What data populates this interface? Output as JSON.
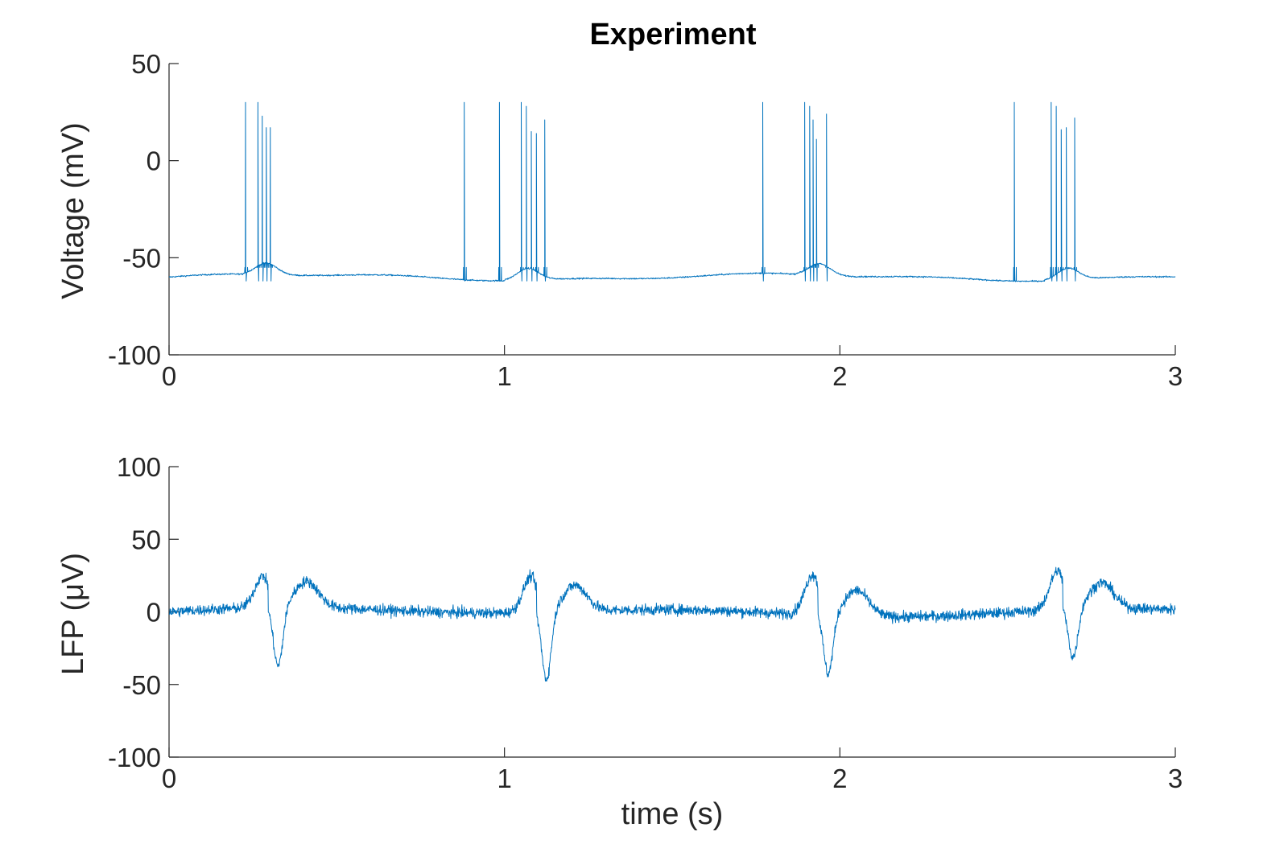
{
  "chart_data": [
    {
      "type": "line",
      "title": "Experiment",
      "xlabel": "",
      "ylabel": "Voltage (mV)",
      "xlim": [
        0,
        3
      ],
      "ylim": [
        -100,
        50
      ],
      "xticks": [
        "0",
        "1",
        "2",
        "3"
      ],
      "yticks": [
        "-100",
        "-50",
        "0",
        "50"
      ],
      "color": "#0072BD",
      "series": [
        {
          "baseline_mV": -60,
          "spikes": [
            {
              "t": 0.228,
              "peak": 30
            },
            {
              "t": 0.265,
              "peak": 30
            },
            {
              "t": 0.278,
              "peak": 23
            },
            {
              "t": 0.29,
              "peak": 17
            },
            {
              "t": 0.302,
              "peak": 17
            },
            {
              "t": 0.88,
              "peak": 30
            },
            {
              "t": 0.985,
              "peak": 30
            },
            {
              "t": 1.05,
              "peak": 30
            },
            {
              "t": 1.065,
              "peak": 28
            },
            {
              "t": 1.08,
              "peak": 15
            },
            {
              "t": 1.095,
              "peak": 14
            },
            {
              "t": 1.12,
              "peak": 21
            },
            {
              "t": 1.77,
              "peak": 30
            },
            {
              "t": 1.895,
              "peak": 30
            },
            {
              "t": 1.91,
              "peak": 28
            },
            {
              "t": 1.92,
              "peak": 21
            },
            {
              "t": 1.93,
              "peak": 11
            },
            {
              "t": 1.96,
              "peak": 24
            },
            {
              "t": 2.52,
              "peak": 30
            },
            {
              "t": 2.63,
              "peak": 30
            },
            {
              "t": 2.645,
              "peak": 28
            },
            {
              "t": 2.66,
              "peak": 16
            },
            {
              "t": 2.675,
              "peak": 17
            },
            {
              "t": 2.7,
              "peak": 22
            }
          ]
        }
      ]
    },
    {
      "type": "line",
      "title": "",
      "xlabel": "time (s)",
      "ylabel": "LFP (μV)",
      "xlim": [
        0,
        3
      ],
      "ylim": [
        -100,
        100
      ],
      "xticks": [
        "0",
        "1",
        "2",
        "3"
      ],
      "yticks": [
        "-100",
        "-50",
        "0",
        "50",
        "100"
      ],
      "color": "#0072BD",
      "series": [
        {
          "events": [
            {
              "t": 0.28,
              "pos_peak": 22,
              "neg_trough": -42,
              "rebound": 18
            },
            {
              "t": 1.08,
              "pos_peak": 25,
              "neg_trough": -48,
              "rebound": 18
            },
            {
              "t": 1.92,
              "pos_peak": 28,
              "neg_trough": -42,
              "rebound": 18
            },
            {
              "t": 2.65,
              "pos_peak": 27,
              "neg_trough": -35,
              "rebound": 18
            }
          ]
        }
      ]
    }
  ]
}
